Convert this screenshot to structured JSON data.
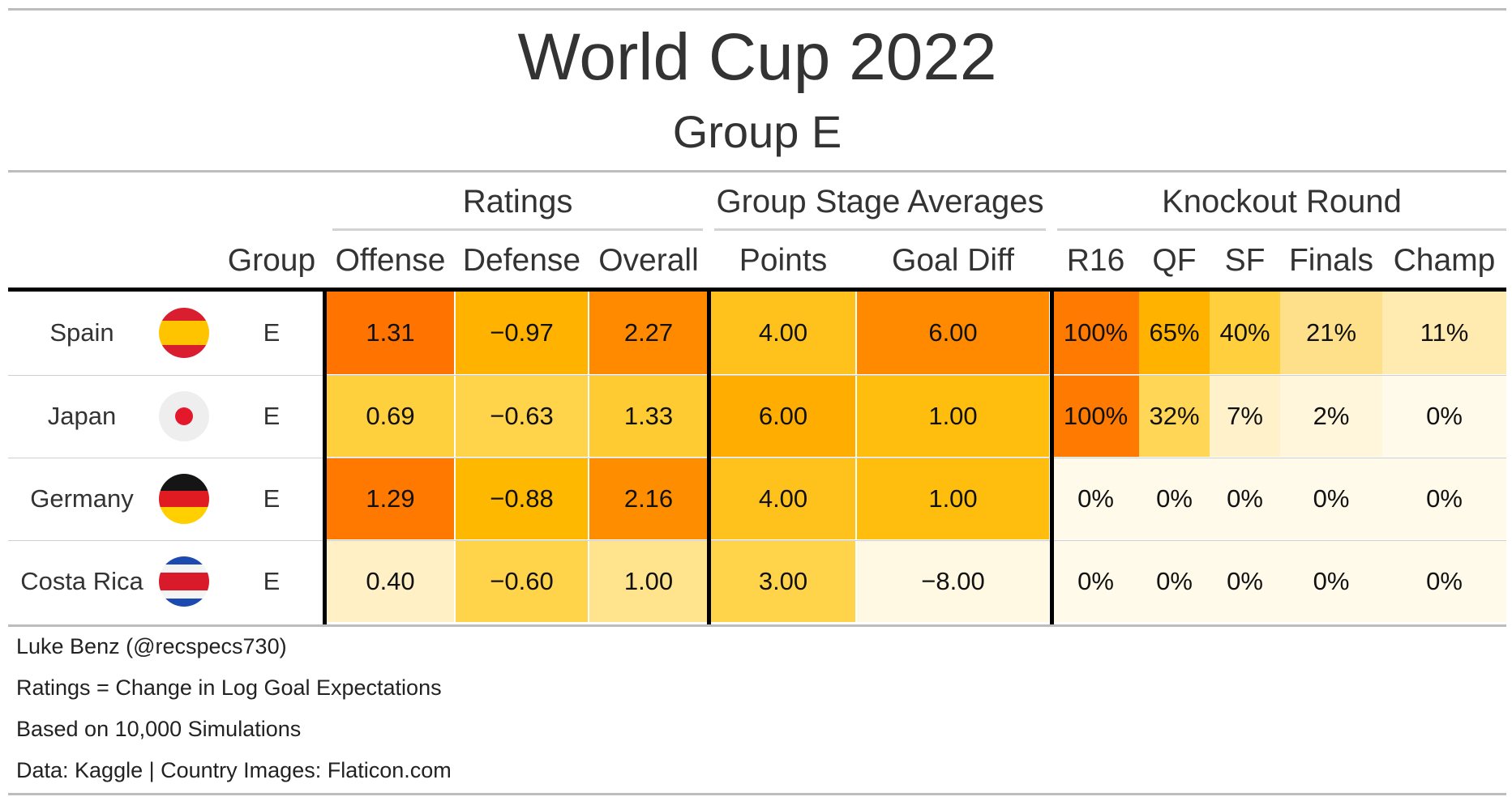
{
  "title": "World Cup 2022",
  "subtitle": "Group E",
  "spanners": {
    "ratings": "Ratings",
    "group_stage": "Group Stage Averages",
    "knockout": "Knockout Round"
  },
  "columns": {
    "group": "Group",
    "offense": "Offense",
    "defense": "Defense",
    "overall": "Overall",
    "points": "Points",
    "goal_diff": "Goal Diff",
    "r16": "R16",
    "qf": "QF",
    "sf": "SF",
    "finals": "Finals",
    "champ": "Champ"
  },
  "chart_data": {
    "type": "table",
    "title": "World Cup 2022",
    "subtitle": "Group E",
    "column_keys": [
      "group",
      "offense",
      "defense",
      "overall",
      "points",
      "goal_diff",
      "r16",
      "qf",
      "sf",
      "finals",
      "champ"
    ],
    "rows": [
      {
        "team": "Spain",
        "flag_icon": "spain-flag-icon",
        "group": "E",
        "offense": 1.31,
        "defense": -0.97,
        "overall": 2.27,
        "points": 4.0,
        "goal_diff": 6.0,
        "r16": 1.0,
        "qf": 0.65,
        "sf": 0.4,
        "finals": 0.21,
        "champ": 0.11,
        "display": [
          "1.31",
          "−0.97",
          "2.27",
          "4.00",
          "6.00",
          "100%",
          "65%",
          "40%",
          "21%",
          "11%"
        ]
      },
      {
        "team": "Japan",
        "flag_icon": "japan-flag-icon",
        "group": "E",
        "offense": 0.69,
        "defense": -0.63,
        "overall": 1.33,
        "points": 6.0,
        "goal_diff": 1.0,
        "r16": 1.0,
        "qf": 0.32,
        "sf": 0.07,
        "finals": 0.02,
        "champ": 0.0,
        "display": [
          "0.69",
          "−0.63",
          "1.33",
          "6.00",
          "1.00",
          "100%",
          "32%",
          "7%",
          "2%",
          "0%"
        ]
      },
      {
        "team": "Germany",
        "flag_icon": "germany-flag-icon",
        "group": "E",
        "offense": 1.29,
        "defense": -0.88,
        "overall": 2.16,
        "points": 4.0,
        "goal_diff": 1.0,
        "r16": 0.0,
        "qf": 0.0,
        "sf": 0.0,
        "finals": 0.0,
        "champ": 0.0,
        "display": [
          "1.29",
          "−0.88",
          "2.16",
          "4.00",
          "1.00",
          "0%",
          "0%",
          "0%",
          "0%",
          "0%"
        ]
      },
      {
        "team": "Costa Rica",
        "flag_icon": "costa-rica-flag-icon",
        "group": "E",
        "offense": 0.4,
        "defense": -0.6,
        "overall": 1.0,
        "points": 3.0,
        "goal_diff": -8.0,
        "r16": 0.0,
        "qf": 0.0,
        "sf": 0.0,
        "finals": 0.0,
        "champ": 0.0,
        "display": [
          "0.40",
          "−0.60",
          "1.00",
          "3.00",
          "−8.00",
          "0%",
          "0%",
          "0%",
          "0%",
          "0%"
        ]
      }
    ],
    "cell_colors": [
      [
        "#ff7400",
        "#ffb200",
        "#ff8a00",
        "#ffc21c",
        "#ff8a00",
        "#ff7a00",
        "#ffb200",
        "#ffcf3d",
        "#ffe08a",
        "#ffeab0"
      ],
      [
        "#ffd03e",
        "#ffd34a",
        "#ffcb33",
        "#ffad00",
        "#ffbe0e",
        "#ff7a00",
        "#ffd655",
        "#fff1c9",
        "#fff6dc",
        "#fffae9"
      ],
      [
        "#ff7800",
        "#ffb800",
        "#ff8d00",
        "#ffc21c",
        "#ffbe0e",
        "#fffae9",
        "#fffae9",
        "#fffae9",
        "#fffae9",
        "#fffae9"
      ],
      [
        "#fff0c6",
        "#ffd34a",
        "#ffe48d",
        "#ffd34a",
        "#fff8e2",
        "#fffae9",
        "#fffae9",
        "#fffae9",
        "#fffae9",
        "#fffae9"
      ]
    ]
  },
  "footer": [
    "Luke Benz (@recspecs730)",
    "Ratings = Change in Log Goal Expectations",
    "Based on 10,000 Simulations",
    "Data: Kaggle | Country Images: Flaticon.com"
  ]
}
